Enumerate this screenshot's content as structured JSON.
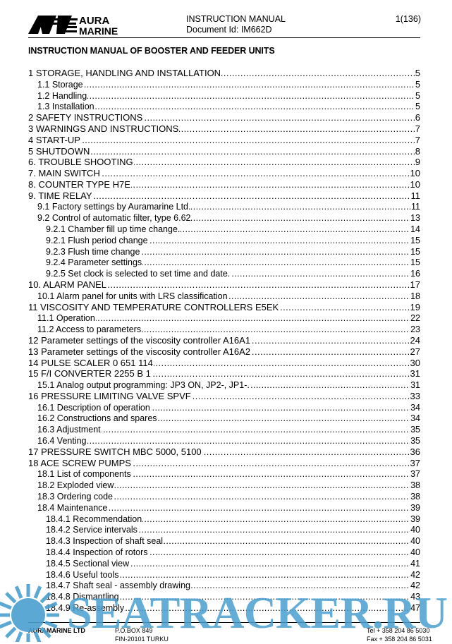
{
  "header": {
    "logo": "AURA MARINE",
    "doc_type": "INSTRUCTION MANUAL",
    "doc_id": "Document Id: IM662D",
    "page": "1(136)"
  },
  "title": "INSTRUCTION MANUAL OF BOOSTER AND FEEDER UNITS",
  "toc": [
    {
      "level": 1,
      "text": "1 STORAGE, HANDLING AND INSTALLATION",
      "page": "5"
    },
    {
      "level": 2,
      "text": "1.1 Storage",
      "page": "5"
    },
    {
      "level": 2,
      "text": "1.2 Handling",
      "page": "5"
    },
    {
      "level": 2,
      "text": "1.3 Installation",
      "page": "5"
    },
    {
      "level": 1,
      "text": "2 SAFETY INSTRUCTIONS",
      "page": "6"
    },
    {
      "level": 1,
      "text": "3 WARNINGS AND INSTRUCTIONS",
      "page": "7"
    },
    {
      "level": 1,
      "text": "4 START-UP",
      "page": "7"
    },
    {
      "level": 1,
      "text": "5 SHUTDOWN",
      "page": "8"
    },
    {
      "level": 1,
      "text": "6. TROUBLE SHOOTING",
      "page": "9"
    },
    {
      "level": 1,
      "text": "7. MAIN SWITCH",
      "page": "10"
    },
    {
      "level": 1,
      "text": "8. COUNTER TYPE H7E",
      "page": "10"
    },
    {
      "level": 1,
      "text": "9. TIME RELAY",
      "page": "11"
    },
    {
      "level": 2,
      "text": "9.1 Factory settings by Auramarine Ltd.",
      "page": "11"
    },
    {
      "level": 2,
      "text": "9.2 Control of automatic filter, type 6.62",
      "page": "13"
    },
    {
      "level": 3,
      "text": "9.2.1 Chamber fill up time change.",
      "page": "14"
    },
    {
      "level": 3,
      "text": "9.2.1 Flush period change",
      "page": "15"
    },
    {
      "level": 3,
      "text": "9.2.3 Flush time change",
      "page": "15"
    },
    {
      "level": 3,
      "text": "9.2.4 Parameter settings",
      "page": "15"
    },
    {
      "level": 3,
      "text": "9.2.5 Set clock is selected to set time and date.",
      "page": "16"
    },
    {
      "level": 1,
      "text": "10. ALARM PANEL",
      "page": "17"
    },
    {
      "level": 2,
      "text": "10.1 Alarm panel for units with LRS classification",
      "page": "18"
    },
    {
      "level": 1,
      "text": "11 VISCOSITY AND TEMPERATURE CONTROLLERS E5EK",
      "page": "19"
    },
    {
      "level": 2,
      "text": "11.1 Operation",
      "page": "22"
    },
    {
      "level": 2,
      "text": "11.2 Access to parameters",
      "page": "23"
    },
    {
      "level": 1,
      "text": "12 Parameter settings of the viscosity controller A16A1",
      "page": "24"
    },
    {
      "level": 1,
      "text": "13 Parameter settings of the viscosity controller A16A2",
      "page": "27"
    },
    {
      "level": 1,
      "text": "14 PULSE SCALER 0 651 114",
      "page": "30"
    },
    {
      "level": 1,
      "text": "15 F/I CONVERTER 2255 B 1",
      "page": "31"
    },
    {
      "level": 2,
      "text": "15.1 Analog output programming: JP3 ON, JP2-, JP1-.",
      "page": "31"
    },
    {
      "level": 1,
      "text": "16 PRESSURE LIMITING VALVE SPVF",
      "page": "33"
    },
    {
      "level": 2,
      "text": "16.1 Description of operation",
      "page": "34"
    },
    {
      "level": 2,
      "text": "16.2 Constructions and spares",
      "page": "34"
    },
    {
      "level": 2,
      "text": "16.3 Adjustment",
      "page": "35"
    },
    {
      "level": 2,
      "text": "16.4 Venting",
      "page": "35"
    },
    {
      "level": 1,
      "text": "17 PRESSURE SWITCH MBC 5000, 5100",
      "page": "36"
    },
    {
      "level": 1,
      "text": "18 ACE SCREW PUMPS",
      "page": "37"
    },
    {
      "level": 2,
      "text": "18.1 List of components",
      "page": "37"
    },
    {
      "level": 2,
      "text": "18.2 Exploded view",
      "page": "38"
    },
    {
      "level": 2,
      "text": "18.3 Ordering code",
      "page": "38"
    },
    {
      "level": 2,
      "text": "18.4 Maintenance",
      "page": "39"
    },
    {
      "level": 3,
      "text": "18.4.1 Recommendation",
      "page": "39"
    },
    {
      "level": 3,
      "text": "18.4.2 Service intervals",
      "page": "40"
    },
    {
      "level": 3,
      "text": "18.4.3 Inspection of shaft seal",
      "page": "40"
    },
    {
      "level": 3,
      "text": "18.4.4 Inspection of rotors",
      "page": "40"
    },
    {
      "level": 3,
      "text": "18.4.5 Sectional view",
      "page": "41"
    },
    {
      "level": 3,
      "text": "18.4.6 Useful tools",
      "page": "42"
    },
    {
      "level": 3,
      "text": "18.4.7 Shaft seal - assembly drawing",
      "page": "42"
    },
    {
      "level": 3,
      "text": "18.4.8 Dismantling",
      "page": "43"
    },
    {
      "level": 3,
      "text": "18.4.9 Re-assembly",
      "page": "47"
    }
  ],
  "footer": {
    "company": "AURAMARINE LTD",
    "address1": "P.O.BOX 849",
    "address2": "FIN-20101 TURKU",
    "tel": "Tel + 358 204 86 5030",
    "fax": "Fax + 358 204 86 5031"
  },
  "watermark": {
    "text": "SEATRACKER.RU",
    "color": "#4a9fd0"
  }
}
